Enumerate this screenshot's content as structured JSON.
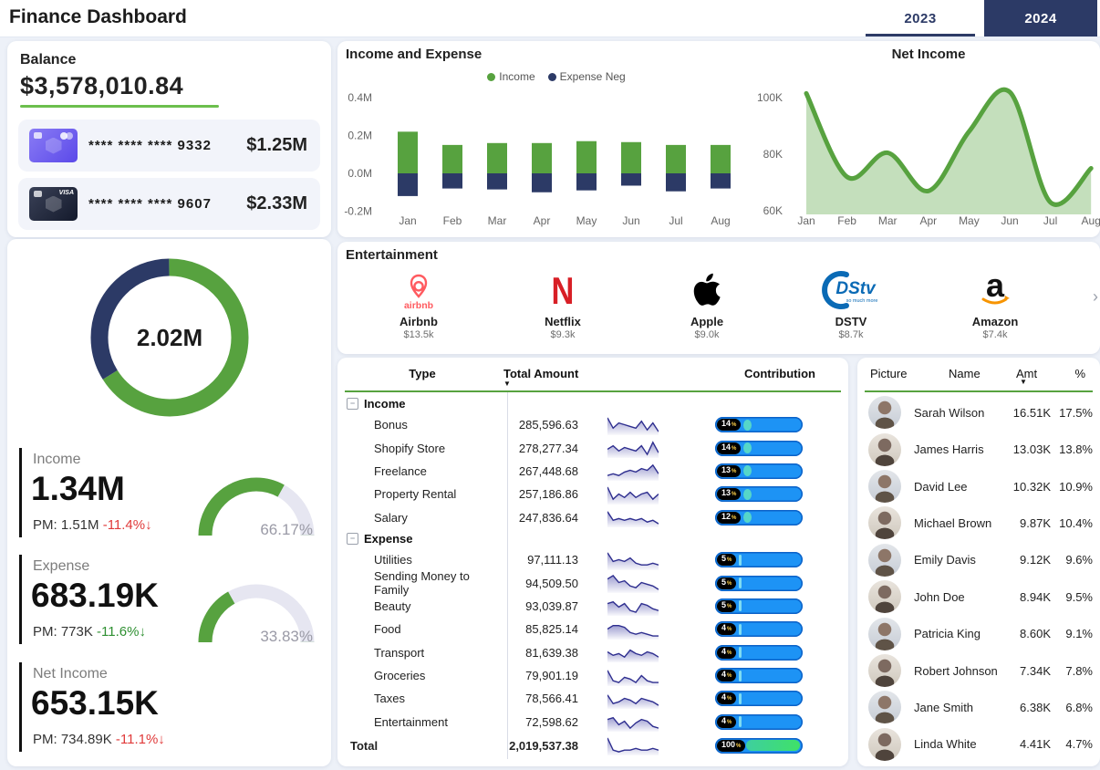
{
  "header": {
    "title": "Finance Dashboard",
    "tabs": [
      {
        "label": "2023",
        "active": false
      },
      {
        "label": "2024",
        "active": true
      }
    ]
  },
  "colors": {
    "green": "#57a23f",
    "green_light": "#c9e0b8",
    "navy": "#2c3a66",
    "blue_pill": "#1d93f5",
    "teal_marker": "#55d6c9",
    "red": "#e03a3a",
    "delta_green": "#2f9032",
    "gauge_track": "#e6e6f1",
    "spark_line": "#2e2e8f"
  },
  "balance": {
    "title": "Balance",
    "amount": "$3,578,010.84",
    "cards": [
      {
        "brand": "mastercard",
        "number": "**** **** **** 9332",
        "amount": "$1.25M"
      },
      {
        "brand": "visa",
        "number": "**** **** **** 9607",
        "amount": "$2.33M"
      }
    ]
  },
  "kpis": {
    "income": {
      "label": "Income",
      "value": "1.34M",
      "pm": "PM: 1.51M",
      "delta": "-11.4%↓",
      "delta_tone": "red",
      "gauge_pct": 66.17,
      "gauge_label": "66.17%"
    },
    "expense": {
      "label": "Expense",
      "value": "683.19K",
      "pm": "PM: 773K",
      "delta": "-11.6%↓",
      "delta_tone": "green",
      "gauge_pct": 33.83,
      "gauge_label": "33.83%"
    },
    "net_income": {
      "label": "Net Income",
      "value": "653.15K",
      "pm": "PM: 734.89K",
      "delta": "-11.1%↓",
      "delta_tone": "red"
    }
  },
  "chart_data": [
    {
      "id": "income_expense",
      "type": "bar",
      "title": "Income and Expense",
      "legend": [
        {
          "label": "Income",
          "color": "#57a23f"
        },
        {
          "label": "Expense Neg",
          "color": "#2c3a66"
        }
      ],
      "categories": [
        "Jan",
        "Feb",
        "Mar",
        "Apr",
        "May",
        "Jun",
        "Jul",
        "Aug"
      ],
      "series": [
        {
          "name": "Income",
          "values": [
            0.22,
            0.15,
            0.16,
            0.16,
            0.17,
            0.165,
            0.15,
            0.15
          ]
        },
        {
          "name": "Expense Neg",
          "values": [
            -0.12,
            -0.08,
            -0.085,
            -0.1,
            -0.09,
            -0.065,
            -0.095,
            -0.08
          ]
        }
      ],
      "yticks": [
        {
          "v": 0.4,
          "label": "0.4M"
        },
        {
          "v": 0.2,
          "label": "0.2M"
        },
        {
          "v": 0.0,
          "label": "0.0M"
        },
        {
          "v": -0.2,
          "label": "-0.2M"
        }
      ],
      "ylim": [
        -0.2,
        0.4
      ],
      "grid": false,
      "legend_position": "top"
    },
    {
      "id": "net_income_trend",
      "type": "area",
      "title": "Net Income",
      "categories": [
        "Jan",
        "Feb",
        "Mar",
        "Apr",
        "May",
        "Jun",
        "Jul",
        "Aug"
      ],
      "values": [
        101.5,
        72,
        80.5,
        67,
        88,
        102,
        63,
        75
      ],
      "yticks": [
        {
          "v": 100,
          "label": "100K"
        },
        {
          "v": 80,
          "label": "80K"
        },
        {
          "v": 60,
          "label": "60K"
        }
      ],
      "ylim": [
        60,
        105
      ],
      "grid": false
    },
    {
      "id": "income_expense_donut",
      "type": "pie",
      "center_label": "2.02M",
      "slices": [
        {
          "name": "Income share",
          "pct": 66.17,
          "color": "#57a23f"
        },
        {
          "name": "Expense share",
          "pct": 33.83,
          "color": "#2c3a66"
        }
      ]
    }
  ],
  "entertainment": {
    "title": "Entertainment",
    "items": [
      {
        "logo": "airbnb",
        "name": "Airbnb",
        "value": "$13.5k"
      },
      {
        "logo": "netflix",
        "name": "Netflix",
        "value": "$9.3k"
      },
      {
        "logo": "apple",
        "name": "Apple",
        "value": "$9.0k"
      },
      {
        "logo": "dstv",
        "name": "DSTV",
        "value": "$8.7k"
      },
      {
        "logo": "amazon",
        "name": "Amazon",
        "value": "$7.4k"
      }
    ]
  },
  "breakdown_table": {
    "headers": {
      "type": "Type",
      "amount": "Total Amount",
      "contribution": "Contribution"
    },
    "groups": [
      {
        "name": "Income",
        "rows": [
          {
            "name": "Bonus",
            "amount": "285,596.63",
            "pct": "14",
            "spark": [
              9,
              3,
              6,
              5,
              4,
              3,
              7,
              2,
              6,
              1
            ]
          },
          {
            "name": "Shopify Store",
            "amount": "278,277.34",
            "pct": "14",
            "spark": [
              4,
              6,
              3,
              5,
              4,
              3,
              6,
              1,
              8,
              2
            ]
          },
          {
            "name": "Freelance",
            "amount": "267,448.68",
            "pct": "13",
            "spark": [
              2,
              3,
              2,
              4,
              5,
              4,
              6,
              5,
              8,
              3
            ]
          },
          {
            "name": "Property Rental",
            "amount": "257,186.86",
            "pct": "13",
            "spark": [
              9,
              2,
              5,
              3,
              6,
              3,
              5,
              6,
              2,
              5
            ]
          },
          {
            "name": "Salary",
            "amount": "247,836.64",
            "pct": "12",
            "spark": [
              8,
              3,
              4,
              3,
              4,
              3,
              4,
              2,
              3,
              1
            ]
          }
        ]
      },
      {
        "name": "Expense",
        "rows": [
          {
            "name": "Utilities",
            "amount": "97,111.13",
            "pct": "5",
            "spark": [
              9,
              4,
              5,
              4,
              6,
              3,
              2,
              2,
              3,
              2
            ]
          },
          {
            "name": "Sending Money to Family",
            "amount": "94,509.50",
            "pct": "5",
            "spark": [
              7,
              9,
              5,
              6,
              3,
              2,
              5,
              4,
              3,
              1
            ]
          },
          {
            "name": "Beauty",
            "amount": "93,039.87",
            "pct": "5",
            "spark": [
              6,
              7,
              4,
              6,
              2,
              1,
              6,
              5,
              3,
              2
            ]
          },
          {
            "name": "Food",
            "amount": "85,825.14",
            "pct": "4",
            "spark": [
              5,
              7,
              7,
              6,
              3,
              2,
              3,
              2,
              1,
              1
            ]
          },
          {
            "name": "Transport",
            "amount": "81,639.38",
            "pct": "4",
            "spark": [
              5,
              3,
              4,
              2,
              6,
              4,
              3,
              5,
              4,
              2
            ]
          },
          {
            "name": "Groceries",
            "amount": "79,901.19",
            "pct": "4",
            "spark": [
              8,
              2,
              1,
              4,
              3,
              1,
              5,
              2,
              1,
              1
            ]
          },
          {
            "name": "Taxes",
            "amount": "78,566.41",
            "pct": "4",
            "spark": [
              7,
              2,
              3,
              5,
              4,
              2,
              5,
              4,
              3,
              1
            ]
          },
          {
            "name": "Entertainment",
            "amount": "72,598.62",
            "pct": "4",
            "spark": [
              6,
              7,
              3,
              5,
              1,
              4,
              6,
              5,
              2,
              1
            ]
          }
        ]
      }
    ],
    "total": {
      "name": "Total",
      "amount": "2,019,537.38",
      "pct": "100",
      "spark": [
        9,
        2,
        1,
        2,
        2,
        3,
        2,
        2,
        3,
        2
      ]
    }
  },
  "people_table": {
    "headers": {
      "picture": "Picture",
      "name": "Name",
      "amt": "Amt",
      "pct": "%"
    },
    "rows": [
      {
        "name": "Sarah Wilson",
        "amt": "16.51K",
        "pct": "17.5%"
      },
      {
        "name": "James Harris",
        "amt": "13.03K",
        "pct": "13.8%"
      },
      {
        "name": "David Lee",
        "amt": "10.32K",
        "pct": "10.9%"
      },
      {
        "name": "Michael Brown",
        "amt": "9.87K",
        "pct": "10.4%"
      },
      {
        "name": "Emily Davis",
        "amt": "9.12K",
        "pct": "9.6%"
      },
      {
        "name": "John Doe",
        "amt": "8.94K",
        "pct": "9.5%"
      },
      {
        "name": "Patricia King",
        "amt": "8.60K",
        "pct": "9.1%"
      },
      {
        "name": "Robert Johnson",
        "amt": "7.34K",
        "pct": "7.8%"
      },
      {
        "name": "Jane Smith",
        "amt": "6.38K",
        "pct": "6.8%"
      },
      {
        "name": "Linda White",
        "amt": "4.41K",
        "pct": "4.7%"
      }
    ]
  },
  "carousel": {
    "next": "›"
  }
}
